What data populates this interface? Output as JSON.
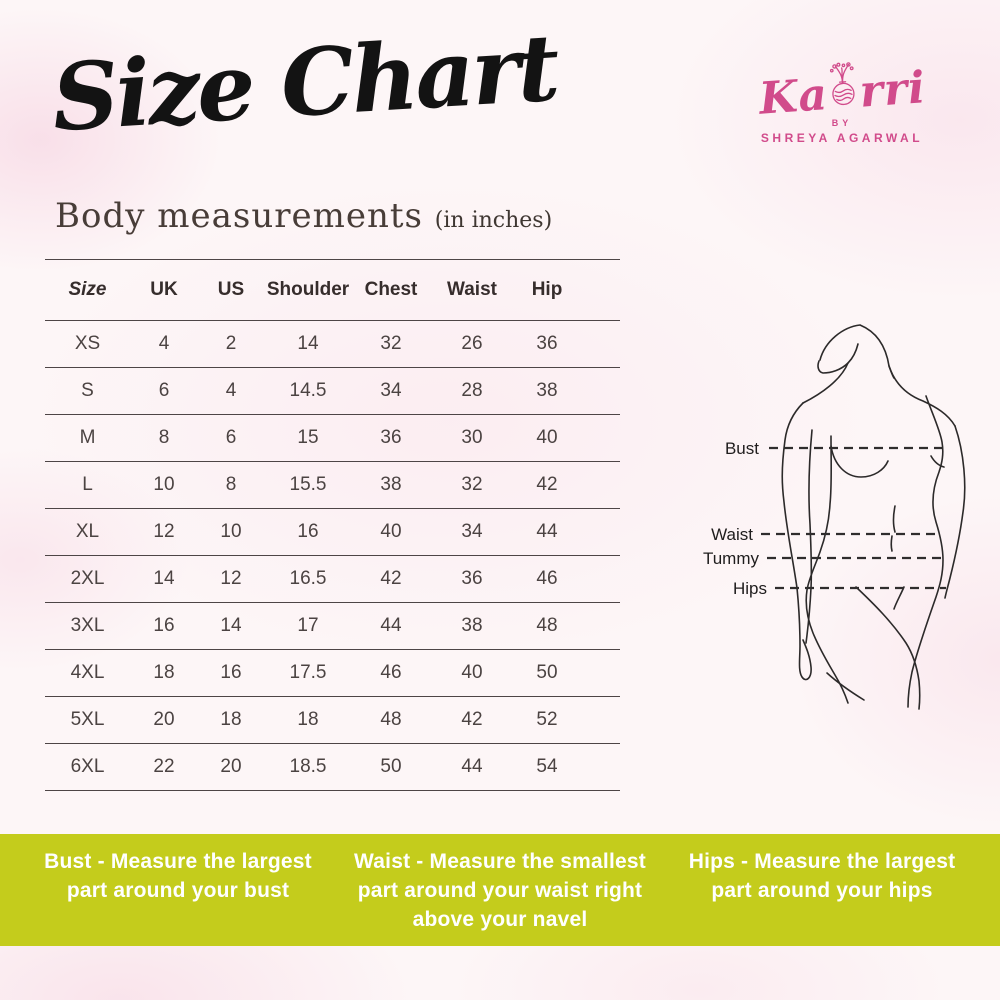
{
  "page": {
    "title": "Size Chart",
    "subtitle": "Body measurements",
    "subtitle_note": "(in inches)"
  },
  "logo": {
    "brand_start": "Ka",
    "brand_end": "rri",
    "by_label": "BY",
    "owner": "SHREYA AGARWAL",
    "color": "#d14b8b"
  },
  "size_table": {
    "columns": [
      "Size",
      "UK",
      "US",
      "Shoulder",
      "Chest",
      "Waist",
      "Hip"
    ],
    "rows": [
      [
        "XS",
        "4",
        "2",
        "14",
        "32",
        "26",
        "36"
      ],
      [
        "S",
        "6",
        "4",
        "14.5",
        "34",
        "28",
        "38"
      ],
      [
        "M",
        "8",
        "6",
        "15",
        "36",
        "30",
        "40"
      ],
      [
        "L",
        "10",
        "8",
        "15.5",
        "38",
        "32",
        "42"
      ],
      [
        "XL",
        "12",
        "10",
        "16",
        "40",
        "34",
        "44"
      ],
      [
        "2XL",
        "14",
        "12",
        "16.5",
        "42",
        "36",
        "46"
      ],
      [
        "3XL",
        "16",
        "14",
        "17",
        "44",
        "38",
        "48"
      ],
      [
        "4XL",
        "18",
        "16",
        "17.5",
        "46",
        "40",
        "50"
      ],
      [
        "5XL",
        "20",
        "18",
        "18",
        "48",
        "42",
        "52"
      ],
      [
        "6XL",
        "22",
        "20",
        "18.5",
        "50",
        "44",
        "54"
      ]
    ]
  },
  "figure": {
    "labels": {
      "bust": "Bust",
      "waist": "Waist",
      "tummy": "Tummy",
      "hips": "Hips"
    }
  },
  "banner": {
    "background": "#c4cc1c",
    "items": [
      {
        "term": "Bust -",
        "description": "Measure the largest part around your bust"
      },
      {
        "term": "Waist -",
        "description": "Measure the smallest part around your waist right above your navel"
      },
      {
        "term": "Hips -",
        "description": "Measure the largest part around your hips"
      }
    ]
  }
}
